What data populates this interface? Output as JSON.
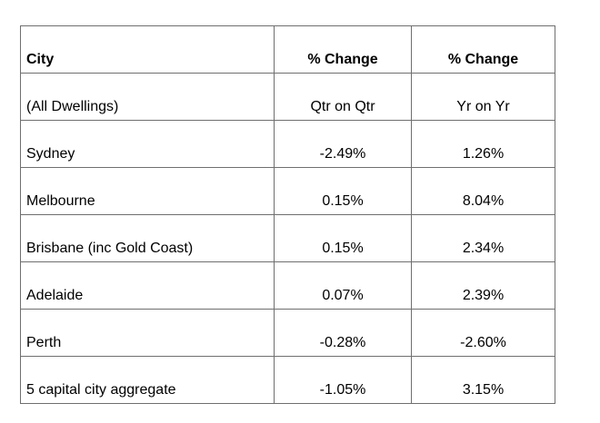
{
  "page": {
    "background_color": "#ffffff",
    "text_color": "#000000",
    "table_border_color": "#6f6f6f"
  },
  "table": {
    "header": {
      "col1_line1": "City",
      "col1_line2": "(All Dwellings)",
      "col2_line1": "% Change",
      "col2_line2": "Qtr on Qtr",
      "col3_line1": "% Change",
      "col3_line2": "Yr on Yr"
    },
    "rows": [
      {
        "city": "Sydney",
        "qtr_on_qtr": "-2.49%",
        "yr_on_yr": "1.26%"
      },
      {
        "city": "Melbourne",
        "qtr_on_qtr": "0.15%",
        "yr_on_yr": "8.04%"
      },
      {
        "city": "Brisbane (inc Gold Coast)",
        "qtr_on_qtr": "0.15%",
        "yr_on_yr": "2.34%"
      },
      {
        "city": "Adelaide",
        "qtr_on_qtr": "0.07%",
        "yr_on_yr": "2.39%"
      },
      {
        "city": "Perth",
        "qtr_on_qtr": "-0.28%",
        "yr_on_yr": "-2.60%"
      },
      {
        "city": "5 capital city aggregate",
        "qtr_on_qtr": "-1.05%",
        "yr_on_yr": "3.15%"
      }
    ]
  },
  "chart_data": {
    "type": "table",
    "title": "City (All Dwellings) % Change",
    "columns": [
      "City (All Dwellings)",
      "% Change Qtr on Qtr",
      "% Change Yr on Yr"
    ],
    "categories": [
      "Sydney",
      "Melbourne",
      "Brisbane (inc Gold Coast)",
      "Adelaide",
      "Perth",
      "5 capital city aggregate"
    ],
    "series": [
      {
        "name": "% Change Qtr on Qtr",
        "values": [
          -2.49,
          0.15,
          0.15,
          0.07,
          -0.28,
          -1.05
        ]
      },
      {
        "name": "% Change Yr on Yr",
        "values": [
          1.26,
          8.04,
          2.34,
          2.39,
          -2.6,
          3.15
        ]
      }
    ]
  }
}
